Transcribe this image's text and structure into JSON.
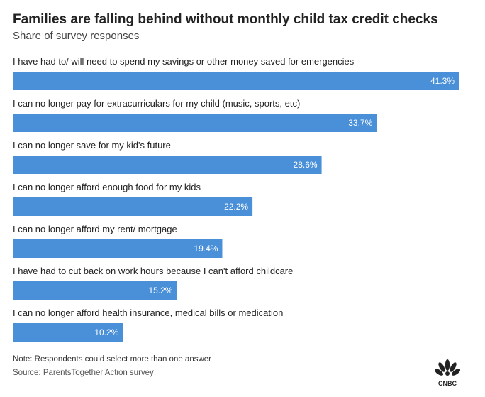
{
  "chart_data": {
    "type": "bar",
    "orientation": "horizontal",
    "title": "Families are falling behind without monthly child tax credit checks",
    "subtitle": "Share of survey responses",
    "categories": [
      "I have had to/ will need to spend my savings or other money saved for emergencies",
      "I can no longer pay for extracurriculars for my child (music, sports, etc)",
      "I can no longer save for my kid's future",
      "I can no longer afford enough food for my kids",
      "I can no longer afford my rent/ mortgage",
      "I have had to cut back on work hours because I can't afford childcare",
      "I can no longer afford health insurance, medical bills or medication"
    ],
    "values": [
      41.3,
      33.7,
      28.6,
      22.2,
      19.4,
      15.2,
      10.2
    ],
    "value_labels": [
      "41.3%",
      "33.7%",
      "28.6%",
      "22.2%",
      "19.4%",
      "15.2%",
      "10.2%"
    ],
    "xlim": [
      0,
      41.3
    ],
    "grid": false,
    "legend": "none",
    "bar_color": "#4a90d9"
  },
  "note": "Note: Respondents could select more than one answer",
  "source": "Source: ParentsTogether Action survey",
  "logo": {
    "name": "CNBC",
    "icon": "cnbc-peacock-logo"
  }
}
